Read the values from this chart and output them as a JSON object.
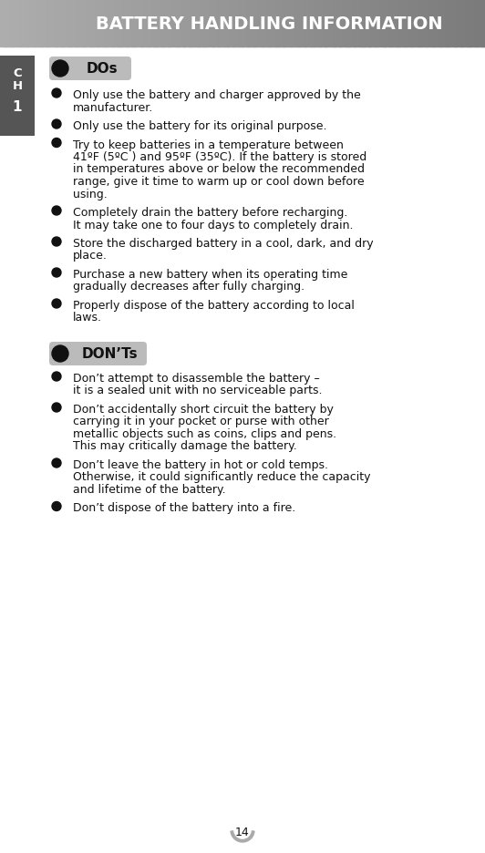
{
  "title": "BATTERY HANDLING INFORMATION",
  "title_text_color": "#ffffff",
  "page_bg": "#ffffff",
  "sidebar_bg": "#555555",
  "label_bg": "#bbbbbb",
  "label_text_color": "#111111",
  "bullet_color": "#111111",
  "body_text_color": "#111111",
  "page_number": "14",
  "dos_label": "DOs",
  "donts_label": "DON’Ts",
  "dos_items": [
    "Only use the battery and charger approved by the\nmanufacturer.",
    "Only use the battery for its original purpose.",
    "Try to keep batteries in a temperature between\n41ºF (5ºC ) and 95ºF (35ºC). If the battery is stored\nin temperatures above or below the recommended\nrange, give it time to warm up or cool down before\nusing.",
    "Completely drain the battery before recharging.\nIt may take one to four days to completely drain.",
    "Store the discharged battery in a cool, dark, and dry\nplace.",
    "Purchase a new battery when its operating time\ngradually decreases after fully charging.",
    "Properly dispose of the battery according to local\nlaws."
  ],
  "donts_items": [
    "Don’t attempt to disassemble the battery –\nit is a sealed unit with no serviceable parts.",
    "Don’t accidentally short circuit the battery by\ncarrying it in your pocket or purse with other\nmetallic objects such as coins, clips and pens.\nThis may critically damage the battery.",
    "Don’t leave the battery in hot or cold temps.\nOtherwise, it could significantly reduce the capacity\nand lifetime of the battery.",
    "Don’t dispose of the battery into a fire."
  ]
}
